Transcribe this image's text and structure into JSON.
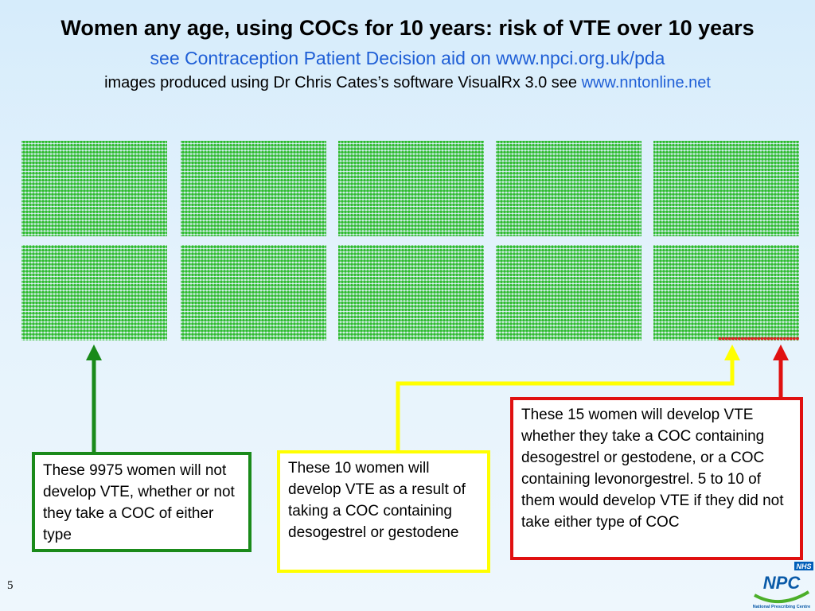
{
  "header": {
    "title": "Women any age, using COCs for 10 years: risk of VTE over 10 years",
    "subtitle_line1": "see Contraception Patient Decision aid on www.npci.org.uk/pda",
    "subtitle_line2_prefix": "images produced using Dr Chris Cates’s software VisualRx 3.0 see ",
    "subtitle_line2_link": "www.nntonline.net"
  },
  "pictogram": {
    "total_women": 10000,
    "no_vte": 9975,
    "vte_due_to_coc": 10,
    "vte_regardless": 15,
    "colors": {
      "no_vte": "#2fbb2f",
      "vte": "#e02020"
    }
  },
  "callouts": {
    "green": "These 9975 women will not develop VTE, whether or not they take a COC of either type",
    "yellow": "These 10 women will develop VTE as a result of taking a COC containing desogestrel or gestodene",
    "red": "These 15 women will develop VTE whether they take a COC containing desogestrel or gestodene, or a COC containing levonorgestrel. 5 to 10 of them would develop VTE if they did not take either type of COC",
    "colors": {
      "green": "#1a8a1a",
      "yellow": "#ffff00",
      "red": "#e01010"
    }
  },
  "footer": {
    "slide_number": "5",
    "logo_badge": "NHS",
    "logo_text": "NPC",
    "logo_subtext": "National Prescribing Centre"
  }
}
